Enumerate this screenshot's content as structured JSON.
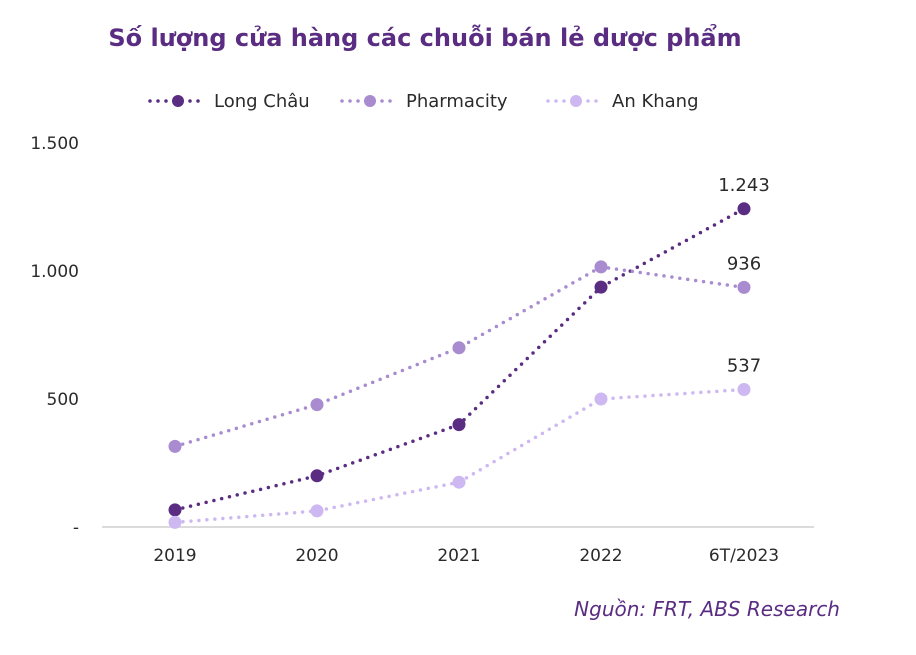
{
  "chart_data": {
    "type": "line",
    "title": "Số lượng cửa hàng các chuỗi bán lẻ dược phẩm",
    "categories": [
      "2019",
      "2020",
      "2021",
      "2022",
      "6T/2023"
    ],
    "ylim": [
      0,
      1500
    ],
    "yticks": [
      {
        "value": 0,
        "label": "-"
      },
      {
        "value": 500,
        "label": "500"
      },
      {
        "value": 1000,
        "label": "1.000"
      },
      {
        "value": 1500,
        "label": "1.500"
      }
    ],
    "grid": false,
    "legend_position": "top-center",
    "series": [
      {
        "name": "Long Châu",
        "color": "#5a2d82",
        "values": [
          67,
          200,
          400,
          937,
          1243
        ],
        "last_label": "1.243"
      },
      {
        "name": "Pharmacity",
        "color": "#a98bd0",
        "values": [
          315,
          478,
          700,
          1016,
          936
        ],
        "last_label": "936"
      },
      {
        "name": "An Khang",
        "color": "#cdb8f1",
        "values": [
          18,
          63,
          175,
          500,
          537
        ],
        "last_label": "537"
      }
    ]
  },
  "source": "Nguồn: FRT, ABS Research"
}
